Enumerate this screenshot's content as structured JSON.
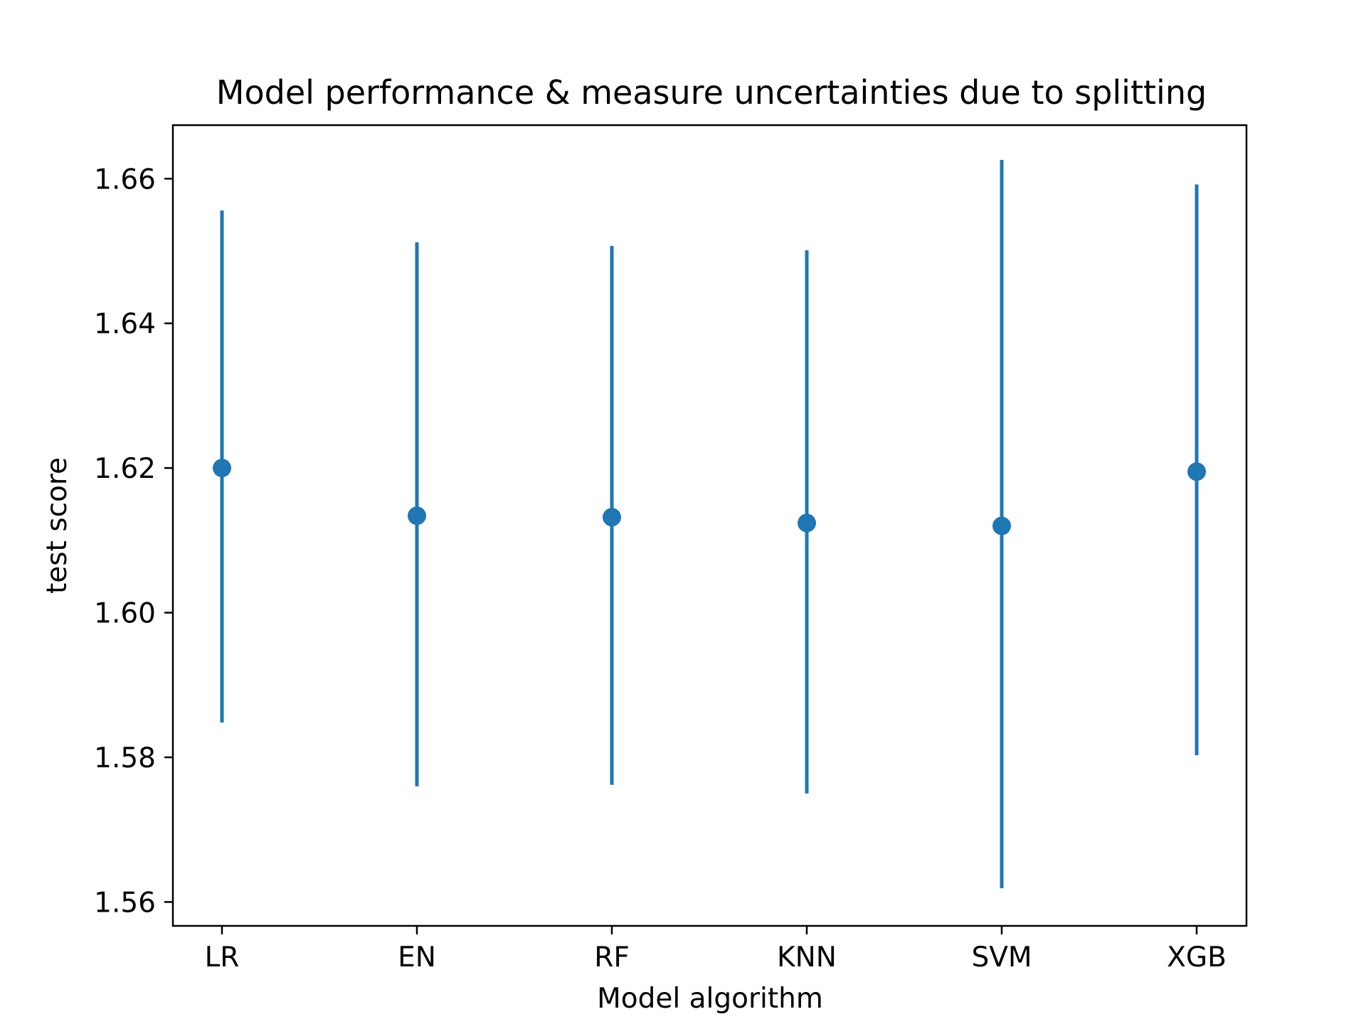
{
  "chart_data": {
    "type": "scatter",
    "title": "Model performance & measure uncertainties due to splitting",
    "xlabel": "Model algorithm",
    "ylabel": "test score",
    "categories": [
      "LR",
      "EN",
      "RF",
      "KNN",
      "SVM",
      "XGB"
    ],
    "series": [
      {
        "values": [
          1.62,
          1.6134,
          1.6132,
          1.6124,
          1.612,
          1.6195
        ],
        "err_low": [
          1.5848,
          1.576,
          1.5762,
          1.575,
          1.5619,
          1.5803
        ],
        "err_high": [
          1.6556,
          1.6512,
          1.6507,
          1.6501,
          1.6626,
          1.6592
        ]
      }
    ],
    "ylim": [
      1.5567,
      1.6674
    ],
    "yticks": [
      "1.56",
      "1.58",
      "1.60",
      "1.62",
      "1.64",
      "1.66"
    ],
    "ytick_values": [
      1.56,
      1.58,
      1.6,
      1.62,
      1.64,
      1.66
    ],
    "grid": false,
    "color": "#1f77b4"
  }
}
